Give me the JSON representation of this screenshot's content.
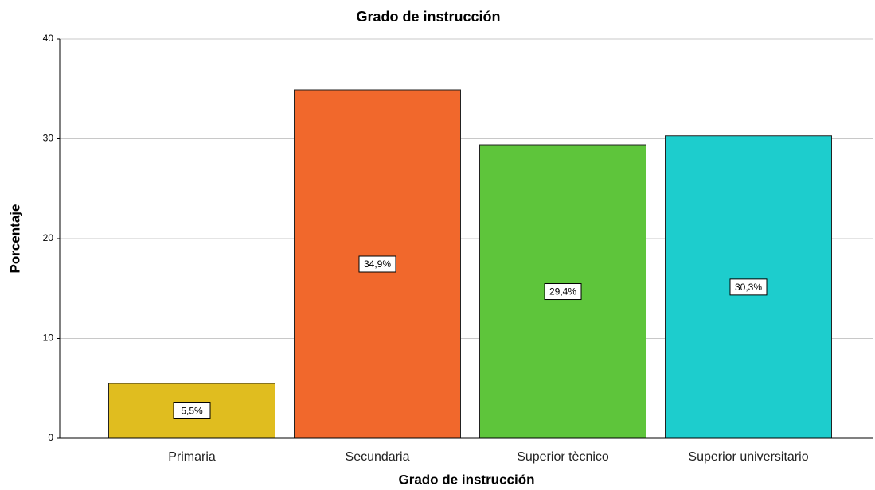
{
  "chart_data": {
    "type": "bar",
    "title": "Grado de instrucción",
    "x_label": "Grado de instrucción",
    "y_label": "Porcentaje",
    "categories": [
      "Primaria",
      "Secundaria",
      "Superior tècnico",
      "Superior universitario"
    ],
    "values": [
      5.5,
      34.9,
      29.4,
      30.3
    ],
    "value_labels": [
      "5,5%",
      "34,9%",
      "29,4%",
      "30,3%"
    ],
    "colors": [
      "#e0bd1f",
      "#f1682c",
      "#5ec53b",
      "#1dcdcd"
    ],
    "ylim": [
      0,
      40
    ],
    "yticks": [
      0,
      10,
      20,
      30,
      40
    ],
    "grid": true
  }
}
